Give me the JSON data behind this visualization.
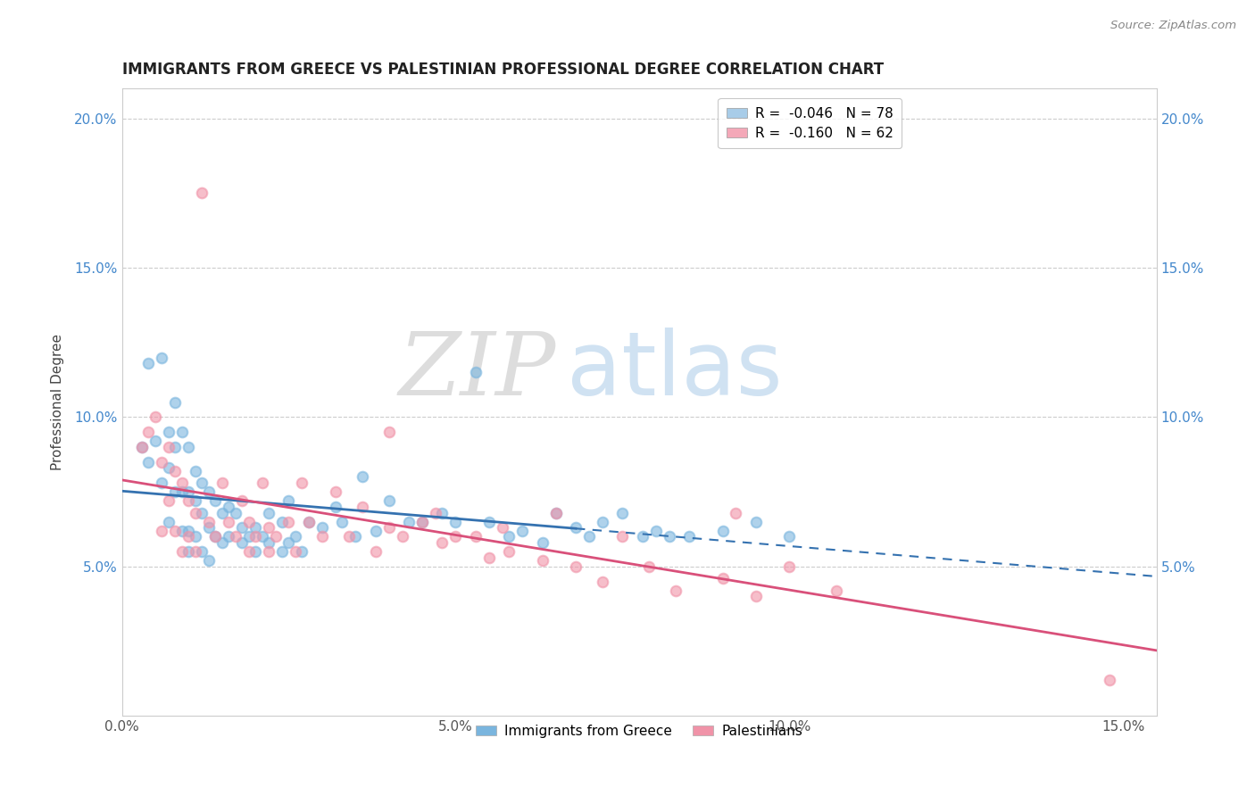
{
  "title": "IMMIGRANTS FROM GREECE VS PALESTINIAN PROFESSIONAL DEGREE CORRELATION CHART",
  "source_text": "Source: ZipAtlas.com",
  "ylabel": "Professional Degree",
  "xlim": [
    0.0,
    0.155
  ],
  "ylim": [
    0.0,
    0.21
  ],
  "xtick_vals": [
    0.0,
    0.05,
    0.1,
    0.15
  ],
  "xtick_labels": [
    "0.0%",
    "5.0%",
    "10.0%",
    "15.0%"
  ],
  "ytick_vals": [
    0.0,
    0.05,
    0.1,
    0.15,
    0.2
  ],
  "ytick_labels": [
    "",
    "5.0%",
    "10.0%",
    "15.0%",
    "20.0%"
  ],
  "legend_r_entries": [
    {
      "label": "R =  -0.046   N = 78",
      "color": "#a8cce8"
    },
    {
      "label": "R =  -0.160   N = 62",
      "color": "#f4a8b8"
    }
  ],
  "watermark_zip": "ZIP",
  "watermark_atlas": "atlas",
  "greece_color": "#7ab5de",
  "palestine_color": "#f093a8",
  "greece_trend_color": "#3572b0",
  "palestine_trend_color": "#d9507a",
  "greece_scatter": [
    [
      0.003,
      0.09
    ],
    [
      0.004,
      0.118
    ],
    [
      0.004,
      0.085
    ],
    [
      0.005,
      0.092
    ],
    [
      0.006,
      0.12
    ],
    [
      0.006,
      0.078
    ],
    [
      0.007,
      0.095
    ],
    [
      0.007,
      0.083
    ],
    [
      0.007,
      0.065
    ],
    [
      0.008,
      0.105
    ],
    [
      0.008,
      0.09
    ],
    [
      0.008,
      0.075
    ],
    [
      0.009,
      0.095
    ],
    [
      0.009,
      0.075
    ],
    [
      0.009,
      0.062
    ],
    [
      0.01,
      0.09
    ],
    [
      0.01,
      0.075
    ],
    [
      0.01,
      0.062
    ],
    [
      0.01,
      0.055
    ],
    [
      0.011,
      0.082
    ],
    [
      0.011,
      0.072
    ],
    [
      0.011,
      0.06
    ],
    [
      0.012,
      0.078
    ],
    [
      0.012,
      0.068
    ],
    [
      0.012,
      0.055
    ],
    [
      0.013,
      0.075
    ],
    [
      0.013,
      0.063
    ],
    [
      0.013,
      0.052
    ],
    [
      0.014,
      0.072
    ],
    [
      0.014,
      0.06
    ],
    [
      0.015,
      0.068
    ],
    [
      0.015,
      0.058
    ],
    [
      0.016,
      0.07
    ],
    [
      0.016,
      0.06
    ],
    [
      0.017,
      0.068
    ],
    [
      0.018,
      0.063
    ],
    [
      0.018,
      0.058
    ],
    [
      0.019,
      0.06
    ],
    [
      0.02,
      0.063
    ],
    [
      0.02,
      0.055
    ],
    [
      0.021,
      0.06
    ],
    [
      0.022,
      0.058
    ],
    [
      0.022,
      0.068
    ],
    [
      0.024,
      0.065
    ],
    [
      0.024,
      0.055
    ],
    [
      0.025,
      0.058
    ],
    [
      0.025,
      0.072
    ],
    [
      0.026,
      0.06
    ],
    [
      0.027,
      0.055
    ],
    [
      0.028,
      0.065
    ],
    [
      0.03,
      0.063
    ],
    [
      0.032,
      0.07
    ],
    [
      0.033,
      0.065
    ],
    [
      0.035,
      0.06
    ],
    [
      0.036,
      0.08
    ],
    [
      0.038,
      0.062
    ],
    [
      0.04,
      0.072
    ],
    [
      0.043,
      0.065
    ],
    [
      0.045,
      0.065
    ],
    [
      0.048,
      0.068
    ],
    [
      0.05,
      0.065
    ],
    [
      0.053,
      0.115
    ],
    [
      0.055,
      0.065
    ],
    [
      0.058,
      0.06
    ],
    [
      0.06,
      0.062
    ],
    [
      0.063,
      0.058
    ],
    [
      0.065,
      0.068
    ],
    [
      0.068,
      0.063
    ],
    [
      0.07,
      0.06
    ],
    [
      0.072,
      0.065
    ],
    [
      0.075,
      0.068
    ],
    [
      0.078,
      0.06
    ],
    [
      0.08,
      0.062
    ],
    [
      0.082,
      0.06
    ],
    [
      0.085,
      0.06
    ],
    [
      0.09,
      0.062
    ],
    [
      0.095,
      0.065
    ],
    [
      0.1,
      0.06
    ]
  ],
  "palestine_scatter": [
    [
      0.003,
      0.09
    ],
    [
      0.004,
      0.095
    ],
    [
      0.005,
      0.1
    ],
    [
      0.006,
      0.085
    ],
    [
      0.006,
      0.062
    ],
    [
      0.007,
      0.09
    ],
    [
      0.007,
      0.072
    ],
    [
      0.008,
      0.082
    ],
    [
      0.008,
      0.062
    ],
    [
      0.009,
      0.078
    ],
    [
      0.009,
      0.055
    ],
    [
      0.01,
      0.072
    ],
    [
      0.01,
      0.06
    ],
    [
      0.011,
      0.068
    ],
    [
      0.011,
      0.055
    ],
    [
      0.012,
      0.175
    ],
    [
      0.013,
      0.065
    ],
    [
      0.014,
      0.06
    ],
    [
      0.015,
      0.078
    ],
    [
      0.016,
      0.065
    ],
    [
      0.017,
      0.06
    ],
    [
      0.018,
      0.072
    ],
    [
      0.019,
      0.065
    ],
    [
      0.019,
      0.055
    ],
    [
      0.02,
      0.06
    ],
    [
      0.021,
      0.078
    ],
    [
      0.022,
      0.063
    ],
    [
      0.022,
      0.055
    ],
    [
      0.023,
      0.06
    ],
    [
      0.025,
      0.065
    ],
    [
      0.026,
      0.055
    ],
    [
      0.027,
      0.078
    ],
    [
      0.028,
      0.065
    ],
    [
      0.03,
      0.06
    ],
    [
      0.032,
      0.075
    ],
    [
      0.034,
      0.06
    ],
    [
      0.036,
      0.07
    ],
    [
      0.038,
      0.055
    ],
    [
      0.04,
      0.095
    ],
    [
      0.04,
      0.063
    ],
    [
      0.042,
      0.06
    ],
    [
      0.045,
      0.065
    ],
    [
      0.047,
      0.068
    ],
    [
      0.048,
      0.058
    ],
    [
      0.05,
      0.06
    ],
    [
      0.053,
      0.06
    ],
    [
      0.055,
      0.053
    ],
    [
      0.057,
      0.063
    ],
    [
      0.058,
      0.055
    ],
    [
      0.063,
      0.052
    ],
    [
      0.065,
      0.068
    ],
    [
      0.068,
      0.05
    ],
    [
      0.072,
      0.045
    ],
    [
      0.075,
      0.06
    ],
    [
      0.079,
      0.05
    ],
    [
      0.083,
      0.042
    ],
    [
      0.09,
      0.046
    ],
    [
      0.092,
      0.068
    ],
    [
      0.095,
      0.04
    ],
    [
      0.1,
      0.05
    ],
    [
      0.107,
      0.042
    ],
    [
      0.148,
      0.012
    ]
  ]
}
